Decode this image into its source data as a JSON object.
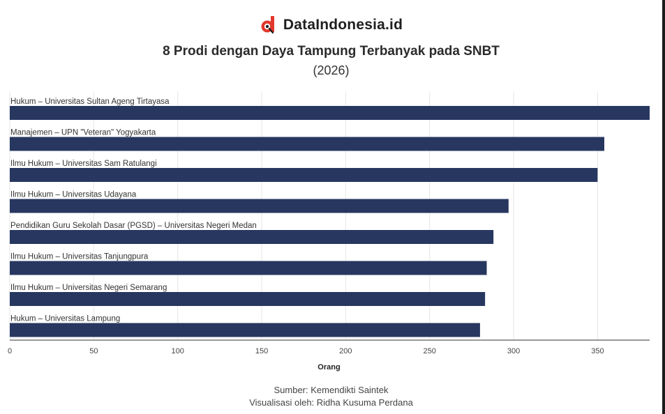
{
  "brand": {
    "name": "DataIndonesia.id",
    "logo_icon": "dataindonesia-logo-icon",
    "accent": "#e1382c"
  },
  "header": {
    "title": "8 Prodi dengan Daya Tampung Terbanyak pada SNBT",
    "subtitle": "(2026)"
  },
  "footer": {
    "source": "Sumber: Kemendikti Saintek",
    "credit": "Visualisasi oleh: Ridha Kusuma Perdana"
  },
  "chart_data": {
    "type": "bar",
    "orientation": "horizontal",
    "categories": [
      "Hukum – Universitas Sultan Ageng Tirtayasa",
      "Manajemen – UPN \"Veteran\" Yogyakarta",
      "Ilmu Hukum – Universitas Sam Ratulangi",
      "Ilmu Hukum – Universitas Udayana",
      "Pendidikan Guru Sekolah Dasar (PGSD) – Universitas Negeri Medan",
      "Ilmu Hukum – Universitas Tanjungpura",
      "Ilmu Hukum – Universitas Negeri Semarang",
      "Hukum – Universitas Lampung"
    ],
    "values": [
      381,
      354,
      350,
      297,
      288,
      284,
      283,
      280
    ],
    "xlabel": "Orang",
    "ylabel": "",
    "xlim": [
      0,
      381
    ],
    "xticks": [
      "0",
      "50",
      "100",
      "150",
      "200",
      "250",
      "300",
      "350"
    ],
    "grid": true,
    "bar_color": "#273760",
    "grid_color": "#e6e6e6"
  }
}
